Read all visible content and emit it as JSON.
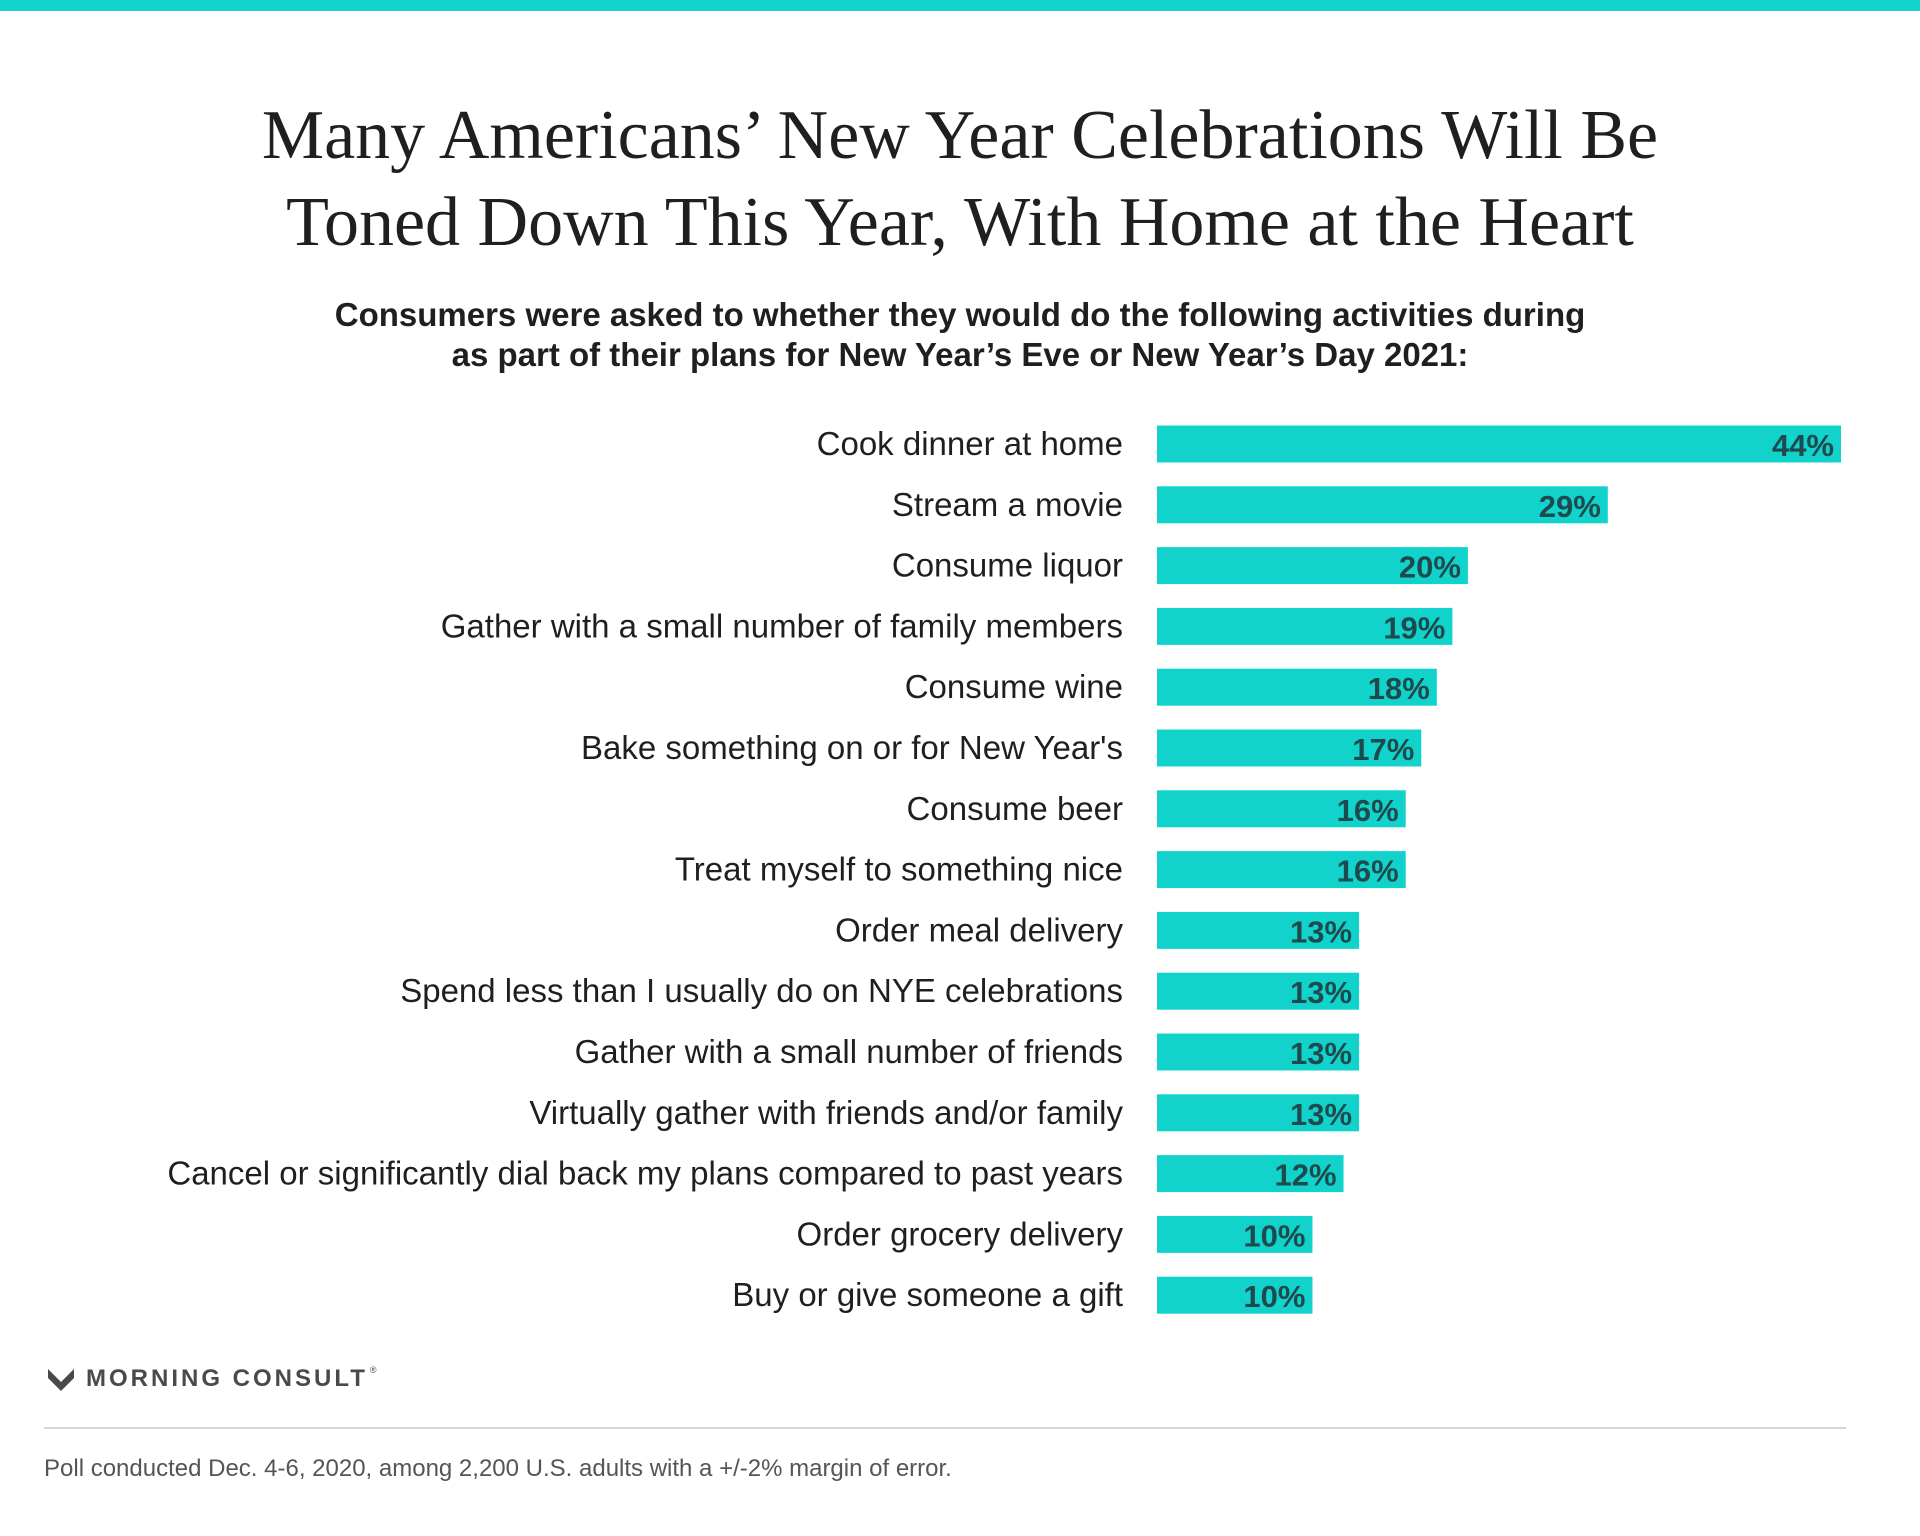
{
  "colors": {
    "accent": "#11d3cb",
    "value_text": "#1e4a4d"
  },
  "header": {
    "title": "Many Americans’ New Year Celebrations Will Be\nToned Down This Year, With Home at the Heart",
    "subtitle": "Consumers were asked to whether they would do the following activities during\nas part of their plans for New Year’s Eve or New Year’s Day 2021:"
  },
  "chart_data": {
    "type": "bar",
    "orientation": "horizontal",
    "title": "Many Americans’ New Year Celebrations Will Be Toned Down This Year, With Home at the Heart",
    "categories": [
      "Cook dinner at home",
      "Stream a movie",
      "Consume liquor",
      "Gather with a small number of family members",
      "Consume wine",
      "Bake something on or for New Year's",
      "Consume beer",
      "Treat myself to something nice",
      "Order meal delivery",
      "Spend less than I usually do on NYE celebrations",
      "Gather with a small number of friends",
      "Virtually gather with friends and/or family",
      "Cancel or significantly dial back my plans compared to past years",
      "Order grocery delivery",
      "Buy or give someone a gift"
    ],
    "values": [
      44,
      29,
      20,
      19,
      18,
      17,
      16,
      16,
      13,
      13,
      13,
      13,
      12,
      10,
      10
    ],
    "value_labels": [
      "44%",
      "29%",
      "20%",
      "19%",
      "18%",
      "17%",
      "16%",
      "16%",
      "13%",
      "13%",
      "13%",
      "13%",
      "12%",
      "10%",
      "10%"
    ],
    "xlabel": "",
    "ylabel": "",
    "xlim": [
      0,
      44
    ],
    "grid": false,
    "legend": "none"
  },
  "footer": {
    "brand": "MORNING CONSULT",
    "trademark": "®",
    "logo_icon": "morning-consult-m-icon",
    "note": "Poll conducted Dec. 4-6, 2020, among 2,200 U.S. adults with a +/-2% margin of error."
  }
}
